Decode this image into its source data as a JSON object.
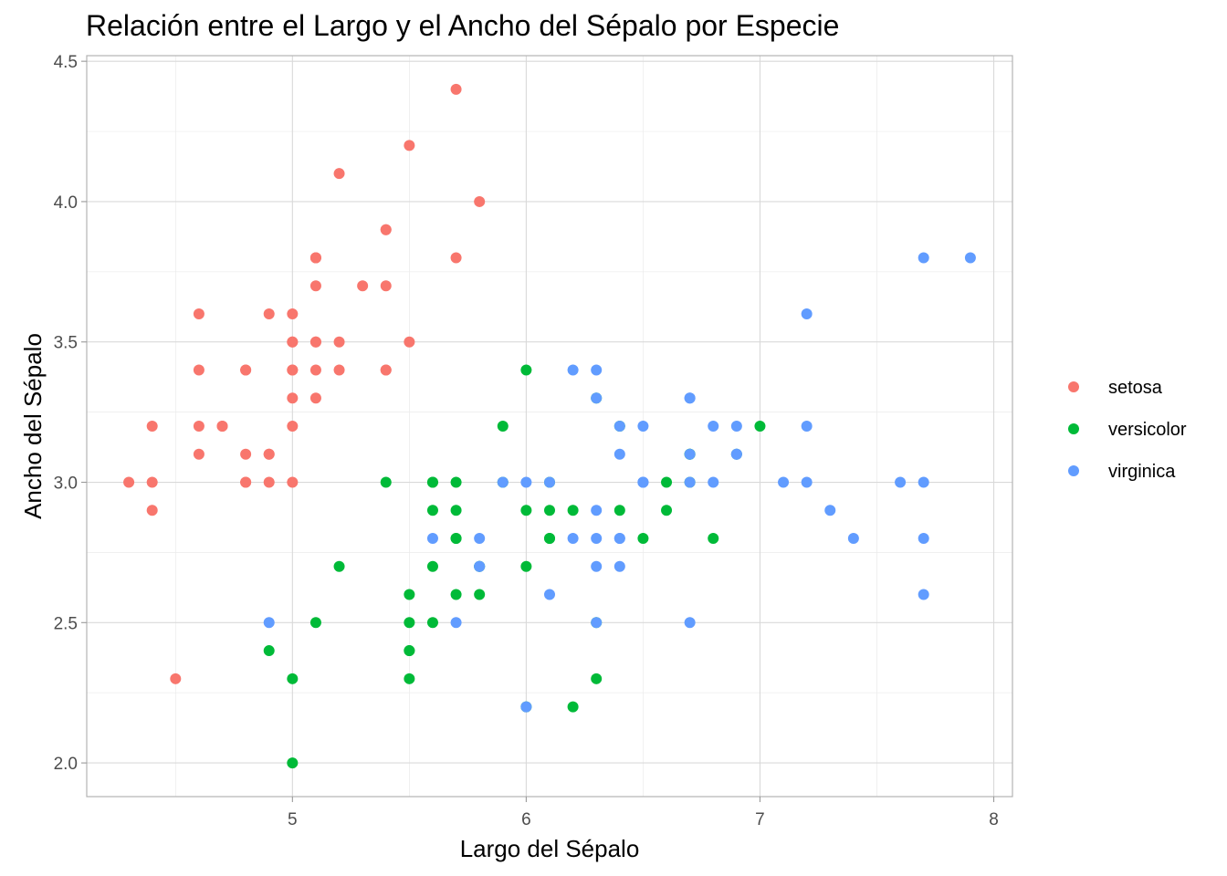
{
  "chart_data": {
    "type": "scatter",
    "title": "Relación entre el Largo y el Ancho del Sépalo por Especie",
    "xlabel": "Largo del Sépalo",
    "ylabel": "Ancho del Sépalo",
    "xlim": [
      4.12,
      8.08
    ],
    "ylim": [
      1.88,
      4.52
    ],
    "x_ticks": [
      5,
      6,
      7,
      8
    ],
    "x_tick_labels": [
      "5",
      "6",
      "7",
      "8"
    ],
    "y_ticks": [
      2.0,
      2.5,
      3.0,
      3.5,
      4.0,
      4.5
    ],
    "y_tick_labels": [
      "2.0",
      "2.5",
      "3.0",
      "3.5",
      "4.0",
      "4.5"
    ],
    "grid": true,
    "legend_position": "right",
    "series": [
      {
        "name": "setosa",
        "color": "#F8766D",
        "points": [
          [
            5.1,
            3.5
          ],
          [
            4.9,
            3.0
          ],
          [
            4.7,
            3.2
          ],
          [
            4.6,
            3.1
          ],
          [
            5.0,
            3.6
          ],
          [
            5.4,
            3.9
          ],
          [
            4.6,
            3.4
          ],
          [
            5.0,
            3.4
          ],
          [
            4.4,
            2.9
          ],
          [
            4.9,
            3.1
          ],
          [
            5.4,
            3.7
          ],
          [
            4.8,
            3.4
          ],
          [
            4.8,
            3.0
          ],
          [
            4.3,
            3.0
          ],
          [
            5.8,
            4.0
          ],
          [
            5.7,
            4.4
          ],
          [
            5.4,
            3.9
          ],
          [
            5.1,
            3.5
          ],
          [
            5.7,
            3.8
          ],
          [
            5.1,
            3.8
          ],
          [
            5.4,
            3.4
          ],
          [
            5.1,
            3.7
          ],
          [
            4.6,
            3.6
          ],
          [
            5.1,
            3.3
          ],
          [
            4.8,
            3.4
          ],
          [
            5.0,
            3.0
          ],
          [
            5.0,
            3.4
          ],
          [
            5.2,
            3.5
          ],
          [
            5.2,
            3.4
          ],
          [
            4.7,
            3.2
          ],
          [
            4.8,
            3.1
          ],
          [
            5.4,
            3.4
          ],
          [
            5.2,
            4.1
          ],
          [
            5.5,
            4.2
          ],
          [
            4.9,
            3.1
          ],
          [
            5.0,
            3.2
          ],
          [
            5.5,
            3.5
          ],
          [
            4.9,
            3.6
          ],
          [
            4.4,
            3.0
          ],
          [
            5.1,
            3.4
          ],
          [
            5.0,
            3.5
          ],
          [
            4.5,
            2.3
          ],
          [
            4.4,
            3.2
          ],
          [
            5.0,
            3.5
          ],
          [
            5.1,
            3.8
          ],
          [
            4.8,
            3.0
          ],
          [
            5.1,
            3.8
          ],
          [
            4.6,
            3.2
          ],
          [
            5.3,
            3.7
          ],
          [
            5.0,
            3.3
          ]
        ]
      },
      {
        "name": "versicolor",
        "color": "#00BA38",
        "points": [
          [
            7.0,
            3.2
          ],
          [
            6.4,
            3.2
          ],
          [
            6.9,
            3.1
          ],
          [
            5.5,
            2.3
          ],
          [
            6.5,
            2.8
          ],
          [
            5.7,
            2.8
          ],
          [
            6.3,
            3.3
          ],
          [
            4.9,
            2.4
          ],
          [
            6.6,
            2.9
          ],
          [
            5.2,
            2.7
          ],
          [
            5.0,
            2.0
          ],
          [
            5.9,
            3.0
          ],
          [
            6.0,
            2.2
          ],
          [
            6.1,
            2.9
          ],
          [
            5.6,
            2.9
          ],
          [
            6.7,
            3.1
          ],
          [
            5.6,
            3.0
          ],
          [
            5.8,
            2.7
          ],
          [
            6.2,
            2.2
          ],
          [
            5.6,
            2.5
          ],
          [
            5.9,
            3.2
          ],
          [
            6.1,
            2.8
          ],
          [
            6.3,
            2.5
          ],
          [
            6.1,
            2.8
          ],
          [
            6.4,
            2.9
          ],
          [
            6.6,
            3.0
          ],
          [
            6.8,
            2.8
          ],
          [
            6.7,
            3.0
          ],
          [
            6.0,
            2.9
          ],
          [
            5.7,
            2.6
          ],
          [
            5.5,
            2.4
          ],
          [
            5.5,
            2.4
          ],
          [
            5.8,
            2.7
          ],
          [
            6.0,
            2.7
          ],
          [
            5.4,
            3.0
          ],
          [
            6.0,
            3.4
          ],
          [
            6.7,
            3.1
          ],
          [
            6.3,
            2.3
          ],
          [
            5.6,
            3.0
          ],
          [
            5.5,
            2.5
          ],
          [
            5.5,
            2.6
          ],
          [
            6.1,
            3.0
          ],
          [
            5.8,
            2.6
          ],
          [
            5.0,
            2.3
          ],
          [
            5.6,
            2.7
          ],
          [
            5.7,
            3.0
          ],
          [
            5.7,
            2.9
          ],
          [
            6.2,
            2.9
          ],
          [
            5.1,
            2.5
          ],
          [
            5.7,
            2.8
          ]
        ]
      },
      {
        "name": "virginica",
        "color": "#619CFF",
        "points": [
          [
            6.3,
            3.3
          ],
          [
            5.8,
            2.7
          ],
          [
            7.1,
            3.0
          ],
          [
            6.3,
            2.9
          ],
          [
            6.5,
            3.0
          ],
          [
            7.6,
            3.0
          ],
          [
            4.9,
            2.5
          ],
          [
            7.3,
            2.9
          ],
          [
            6.7,
            2.5
          ],
          [
            7.2,
            3.6
          ],
          [
            6.5,
            3.2
          ],
          [
            6.4,
            2.7
          ],
          [
            6.8,
            3.0
          ],
          [
            5.7,
            2.5
          ],
          [
            5.8,
            2.8
          ],
          [
            6.4,
            3.2
          ],
          [
            6.5,
            3.0
          ],
          [
            7.7,
            3.8
          ],
          [
            7.7,
            2.6
          ],
          [
            6.0,
            2.2
          ],
          [
            6.9,
            3.2
          ],
          [
            5.6,
            2.8
          ],
          [
            7.7,
            2.8
          ],
          [
            6.3,
            2.7
          ],
          [
            6.7,
            3.3
          ],
          [
            7.2,
            3.2
          ],
          [
            6.2,
            2.8
          ],
          [
            6.1,
            3.0
          ],
          [
            6.4,
            2.8
          ],
          [
            7.2,
            3.0
          ],
          [
            7.4,
            2.8
          ],
          [
            7.9,
            3.8
          ],
          [
            6.4,
            2.8
          ],
          [
            6.3,
            2.8
          ],
          [
            6.1,
            2.6
          ],
          [
            7.7,
            3.0
          ],
          [
            6.3,
            3.4
          ],
          [
            6.4,
            3.1
          ],
          [
            6.0,
            3.0
          ],
          [
            6.9,
            3.1
          ],
          [
            6.7,
            3.1
          ],
          [
            6.9,
            3.1
          ],
          [
            5.8,
            2.7
          ],
          [
            6.8,
            3.2
          ],
          [
            6.7,
            3.3
          ],
          [
            6.7,
            3.0
          ],
          [
            6.3,
            2.5
          ],
          [
            6.5,
            3.0
          ],
          [
            6.2,
            3.4
          ],
          [
            5.9,
            3.0
          ]
        ]
      }
    ]
  }
}
